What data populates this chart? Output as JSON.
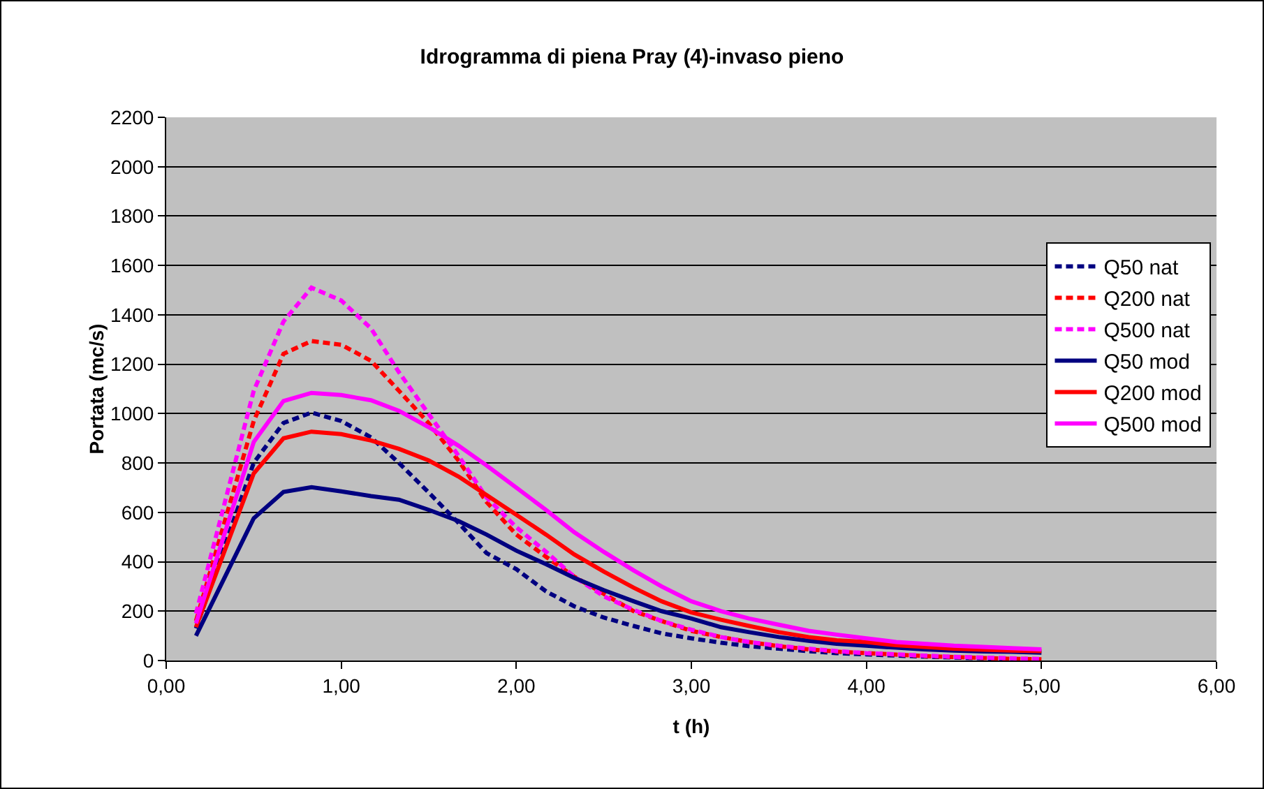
{
  "chart_data": {
    "type": "line",
    "title": "Idrogramma di piena Pray (4)-invaso pieno",
    "xlabel": "t (h)",
    "ylabel": "Portata (mc/s)",
    "x": [
      0.17,
      0.5,
      0.67,
      0.83,
      1.0,
      1.17,
      1.33,
      1.5,
      1.67,
      1.83,
      2.0,
      2.17,
      2.33,
      2.5,
      2.67,
      2.83,
      3.0,
      3.17,
      3.33,
      3.5,
      3.67,
      3.83,
      4.0,
      4.17,
      4.33,
      4.5,
      4.67,
      4.83,
      5.0
    ],
    "series": [
      {
        "name": "Q50 nat",
        "color": "#000080",
        "line_style": "dashed",
        "values": [
          130,
          801,
          962,
          1004,
          970,
          904,
          800,
          680,
          557,
          435,
          370,
          280,
          220,
          174,
          140,
          110,
          90,
          72,
          58,
          48,
          38,
          30,
          25,
          20,
          16,
          12,
          9,
          6,
          3
        ]
      },
      {
        "name": "Q200 nat",
        "color": "#ff0000",
        "line_style": "dashed",
        "values": [
          160,
          970,
          1242,
          1294,
          1279,
          1214,
          1092,
          961,
          810,
          642,
          510,
          420,
          340,
          270,
          200,
          160,
          120,
          95,
          75,
          58,
          45,
          36,
          30,
          24,
          18,
          14,
          10,
          7,
          5
        ]
      },
      {
        "name": "Q500 nat",
        "color": "#ff00ff",
        "line_style": "dashed",
        "values": [
          190,
          1092,
          1373,
          1510,
          1458,
          1345,
          1167,
          998,
          829,
          660,
          540,
          440,
          340,
          260,
          205,
          160,
          125,
          95,
          75,
          60,
          48,
          38,
          30,
          25,
          20,
          15,
          12,
          9,
          6
        ]
      },
      {
        "name": "Q50 mod",
        "color": "#000080",
        "line_style": "solid",
        "values": [
          100,
          576,
          683,
          702,
          685,
          666,
          651,
          610,
          565,
          510,
          445,
          390,
          335,
          285,
          240,
          200,
          170,
          135,
          115,
          95,
          80,
          68,
          60,
          52,
          45,
          40,
          37,
          35,
          32
        ]
      },
      {
        "name": "Q200 mod",
        "color": "#ff0000",
        "line_style": "solid",
        "values": [
          135,
          758,
          900,
          927,
          917,
          891,
          857,
          810,
          745,
          670,
          590,
          510,
          430,
          360,
          295,
          240,
          195,
          165,
          140,
          115,
          95,
          82,
          75,
          62,
          55,
          48,
          44,
          40,
          38
        ]
      },
      {
        "name": "Q500 mod",
        "color": "#ff00ff",
        "line_style": "solid",
        "values": [
          150,
          885,
          1051,
          1084,
          1075,
          1054,
          1011,
          945,
          870,
          790,
          700,
          610,
          520,
          440,
          365,
          300,
          240,
          200,
          170,
          145,
          120,
          105,
          90,
          75,
          68,
          60,
          55,
          50,
          45
        ]
      }
    ],
    "xlim": [
      0,
      6
    ],
    "xticks": [
      {
        "value": 0,
        "label": "0,00"
      },
      {
        "value": 1,
        "label": "1,00"
      },
      {
        "value": 2,
        "label": "2,00"
      },
      {
        "value": 3,
        "label": "3,00"
      },
      {
        "value": 4,
        "label": "4,00"
      },
      {
        "value": 5,
        "label": "5,00"
      },
      {
        "value": 6,
        "label": "6,00"
      }
    ],
    "ylim": [
      0,
      2200
    ],
    "yticks": [
      0,
      200,
      400,
      600,
      800,
      1000,
      1200,
      1400,
      1600,
      1800,
      2000,
      2200
    ],
    "grid": "y",
    "legend": "right",
    "marker": "none"
  }
}
